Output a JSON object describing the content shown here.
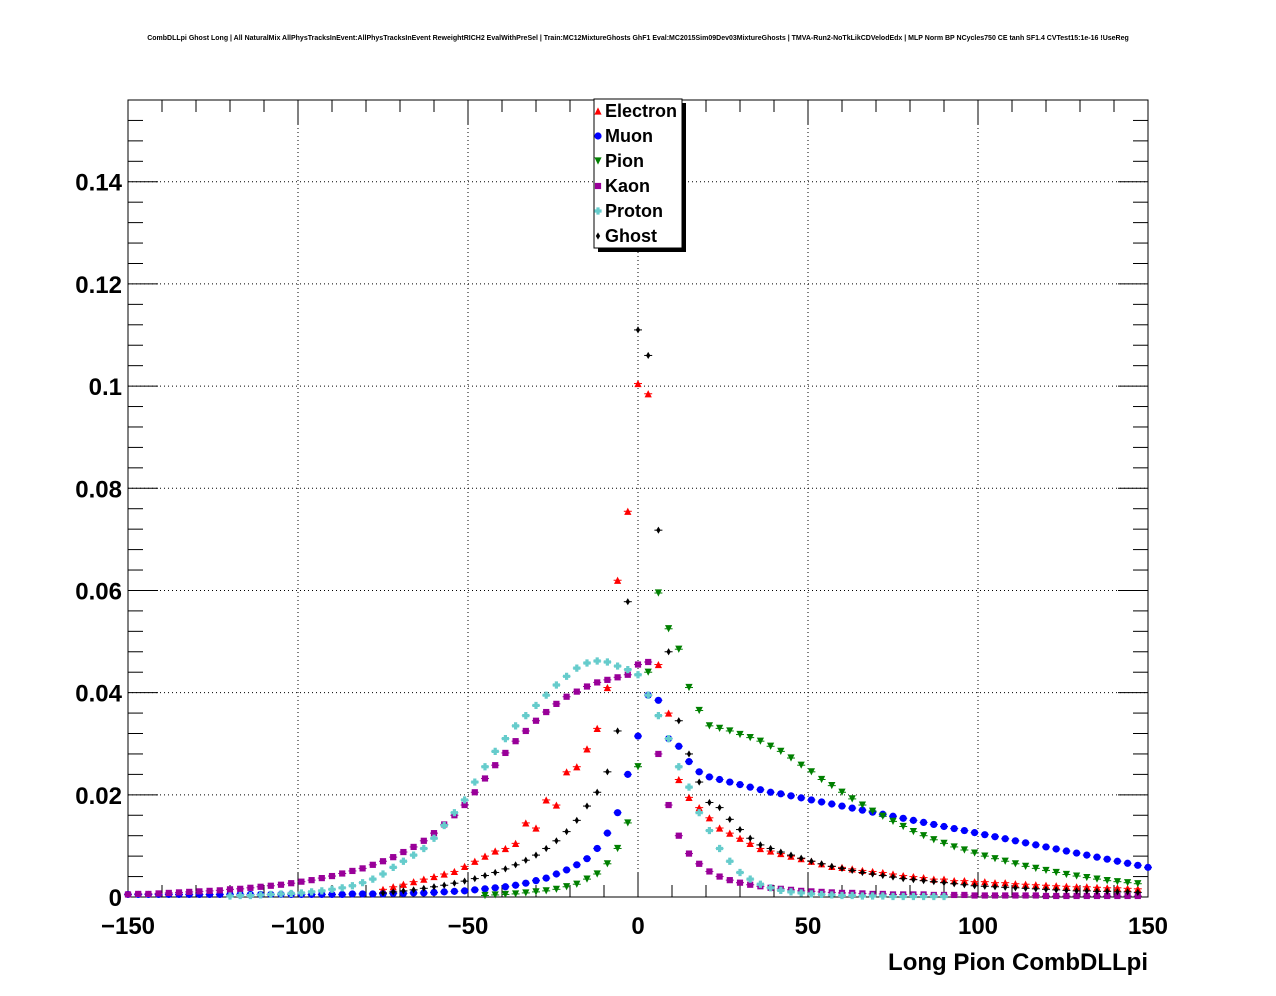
{
  "title": "CombDLLpi Ghost Long | All NaturalMix AllPhysTracksInEvent:AllPhysTracksInEvent ReweightRICH2 EvalWithPreSel | Train:MC12MixtureGhosts GhF1 Eval:MC2015Sim09Dev03MixtureGhosts | TMVA-Run2-NoTkLikCDVelodEdx | MLP Norm BP NCycles750 CE tanh SF1.4 CVTest15:1e-16 !UseReg",
  "chart_data": {
    "type": "scatter",
    "xlabel": "Long Pion CombDLLpi",
    "ylabel": "",
    "xlim": [
      -150,
      150
    ],
    "ylim": [
      0,
      0.156
    ],
    "xticks": [
      -150,
      -100,
      -50,
      0,
      50,
      100,
      150
    ],
    "xtick_labels": [
      "−150",
      "−100",
      "−50",
      "0",
      "50",
      "100",
      "150"
    ],
    "yticks": [
      0,
      0.02,
      0.04,
      0.06,
      0.08,
      0.1,
      0.12,
      0.14
    ],
    "ytick_labels": [
      "0",
      "0.02",
      "0.04",
      "0.06",
      "0.08",
      "0.1",
      "0.12",
      "0.14"
    ],
    "grid": true,
    "legend_position": "top-center",
    "series": [
      {
        "name": "Electron",
        "color": "#ff0000",
        "marker": "triangle-up",
        "x": [
          -75,
          -72,
          -69,
          -66,
          -63,
          -60,
          -57,
          -54,
          -51,
          -48,
          -45,
          -42,
          -39,
          -36,
          -33,
          -30,
          -27,
          -24,
          -21,
          -18,
          -15,
          -12,
          -9,
          -6,
          -3,
          0,
          3,
          6,
          9,
          12,
          15,
          18,
          21,
          24,
          27,
          30,
          33,
          36,
          39,
          42,
          45,
          48,
          51,
          54,
          57,
          60,
          63,
          66,
          69,
          72,
          75,
          78,
          81,
          84,
          87,
          90,
          93,
          96,
          99,
          102,
          105,
          108,
          111,
          114,
          117,
          120,
          123,
          126,
          129,
          132,
          135,
          138,
          141,
          144,
          147
        ],
        "y": [
          0.0015,
          0.002,
          0.0025,
          0.003,
          0.0035,
          0.004,
          0.0045,
          0.005,
          0.006,
          0.007,
          0.008,
          0.009,
          0.0095,
          0.0105,
          0.0145,
          0.0135,
          0.019,
          0.018,
          0.0245,
          0.0255,
          0.029,
          0.033,
          0.041,
          0.062,
          0.0755,
          0.1005,
          0.0985,
          0.0455,
          0.036,
          0.023,
          0.0195,
          0.0175,
          0.0155,
          0.0135,
          0.0125,
          0.0115,
          0.0105,
          0.0095,
          0.009,
          0.0085,
          0.008,
          0.0075,
          0.007,
          0.0065,
          0.006,
          0.0058,
          0.0055,
          0.0052,
          0.005,
          0.0048,
          0.0045,
          0.0042,
          0.004,
          0.0038,
          0.0035,
          0.0035,
          0.0032,
          0.0032,
          0.003,
          0.003,
          0.0028,
          0.0028,
          0.0026,
          0.0025,
          0.0024,
          0.0023,
          0.0022,
          0.0021,
          0.002,
          0.002,
          0.0019,
          0.0018,
          0.0018,
          0.0017,
          0.0016
        ]
      },
      {
        "name": "Muon",
        "color": "#0000ff",
        "marker": "circle",
        "x": [
          -150,
          -147,
          -144,
          -141,
          -138,
          -135,
          -132,
          -129,
          -126,
          -123,
          -120,
          -117,
          -114,
          -111,
          -108,
          -105,
          -102,
          -99,
          -96,
          -93,
          -90,
          -87,
          -84,
          -81,
          -78,
          -75,
          -72,
          -69,
          -66,
          -63,
          -60,
          -57,
          -54,
          -51,
          -48,
          -45,
          -42,
          -39,
          -36,
          -33,
          -30,
          -27,
          -24,
          -21,
          -18,
          -15,
          -12,
          -9,
          -6,
          -3,
          0,
          3,
          6,
          9,
          12,
          15,
          18,
          21,
          24,
          27,
          30,
          33,
          36,
          39,
          42,
          45,
          48,
          51,
          54,
          57,
          60,
          63,
          66,
          69,
          72,
          75,
          78,
          81,
          84,
          87,
          90,
          93,
          96,
          99,
          102,
          105,
          108,
          111,
          114,
          117,
          120,
          123,
          126,
          129,
          132,
          135,
          138,
          141,
          144,
          147,
          150
        ],
        "y": [
          0.0005,
          0.0005,
          0.0005,
          0.0005,
          0.0005,
          0.0005,
          0.0005,
          0.0005,
          0.0005,
          0.0005,
          0.0005,
          0.0005,
          0.0005,
          0.0005,
          0.0005,
          0.0005,
          0.0005,
          0.0005,
          0.0005,
          0.0005,
          0.0005,
          0.0005,
          0.0006,
          0.0006,
          0.0006,
          0.0006,
          0.0007,
          0.0007,
          0.0008,
          0.0008,
          0.0009,
          0.001,
          0.0011,
          0.0012,
          0.0014,
          0.0016,
          0.0018,
          0.002,
          0.0023,
          0.0027,
          0.0032,
          0.0037,
          0.0045,
          0.0053,
          0.0063,
          0.0075,
          0.0095,
          0.0125,
          0.0165,
          0.024,
          0.0315,
          0.0395,
          0.0385,
          0.031,
          0.0295,
          0.0265,
          0.0245,
          0.0235,
          0.023,
          0.0225,
          0.022,
          0.0215,
          0.021,
          0.0205,
          0.0202,
          0.0198,
          0.0194,
          0.019,
          0.0186,
          0.0182,
          0.0178,
          0.0174,
          0.017,
          0.0166,
          0.0162,
          0.0158,
          0.0154,
          0.015,
          0.0146,
          0.0142,
          0.0138,
          0.0134,
          0.013,
          0.0126,
          0.0122,
          0.0118,
          0.0114,
          0.011,
          0.0106,
          0.0102,
          0.0098,
          0.0094,
          0.009,
          0.0086,
          0.0082,
          0.0078,
          0.0074,
          0.007,
          0.0066,
          0.0062,
          0.0058
        ]
      },
      {
        "name": "Pion",
        "color": "#008000",
        "marker": "triangle-down",
        "x": [
          -45,
          -42,
          -39,
          -36,
          -33,
          -30,
          -27,
          -24,
          -21,
          -18,
          -15,
          -12,
          -9,
          -6,
          -3,
          0,
          3,
          6,
          9,
          12,
          15,
          18,
          21,
          24,
          27,
          30,
          33,
          36,
          39,
          42,
          45,
          48,
          51,
          54,
          57,
          60,
          63,
          66,
          69,
          72,
          75,
          78,
          81,
          84,
          87,
          90,
          93,
          96,
          99,
          102,
          105,
          108,
          111,
          114,
          117,
          120,
          123,
          126,
          129,
          132,
          135,
          138,
          141,
          144,
          147
        ],
        "y": [
          0.0003,
          0.0004,
          0.0005,
          0.0006,
          0.0008,
          0.001,
          0.0012,
          0.0015,
          0.002,
          0.0025,
          0.0035,
          0.0045,
          0.0065,
          0.0095,
          0.0145,
          0.0255,
          0.044,
          0.0595,
          0.0525,
          0.0485,
          0.041,
          0.0365,
          0.0335,
          0.033,
          0.0325,
          0.0318,
          0.0312,
          0.0305,
          0.0295,
          0.0285,
          0.0272,
          0.0258,
          0.0245,
          0.023,
          0.0218,
          0.0205,
          0.0192,
          0.018,
          0.0168,
          0.0158,
          0.0148,
          0.0138,
          0.0128,
          0.012,
          0.0112,
          0.0105,
          0.0098,
          0.0092,
          0.0086,
          0.008,
          0.0075,
          0.007,
          0.0065,
          0.006,
          0.0056,
          0.0052,
          0.0048,
          0.0044,
          0.0041,
          0.0038,
          0.0035,
          0.0032,
          0.003,
          0.0028,
          0.0026
        ]
      },
      {
        "name": "Kaon",
        "color": "#990099",
        "marker": "square",
        "x": [
          -150,
          -147,
          -144,
          -141,
          -138,
          -135,
          -132,
          -129,
          -126,
          -123,
          -120,
          -117,
          -114,
          -111,
          -108,
          -105,
          -102,
          -99,
          -96,
          -93,
          -90,
          -87,
          -84,
          -81,
          -78,
          -75,
          -72,
          -69,
          -66,
          -63,
          -60,
          -57,
          -54,
          -51,
          -48,
          -45,
          -42,
          -39,
          -36,
          -33,
          -30,
          -27,
          -24,
          -21,
          -18,
          -15,
          -12,
          -9,
          -6,
          -3,
          0,
          3,
          6,
          9,
          12,
          15,
          18,
          21,
          24,
          27,
          30,
          33,
          36,
          39,
          42,
          45,
          48,
          51,
          54,
          57,
          60,
          63,
          66,
          69,
          72,
          75,
          78,
          81,
          84,
          87,
          90,
          93,
          96,
          99,
          102,
          105,
          108,
          111,
          114,
          117,
          120,
          123,
          126,
          129,
          132,
          135,
          138,
          141,
          144,
          147
        ],
        "y": [
          0.0005,
          0.0006,
          0.0006,
          0.0007,
          0.0008,
          0.0009,
          0.001,
          0.0011,
          0.0012,
          0.0013,
          0.0015,
          0.0016,
          0.0018,
          0.002,
          0.0022,
          0.0024,
          0.0027,
          0.003,
          0.0033,
          0.0037,
          0.0041,
          0.0046,
          0.0051,
          0.0056,
          0.0063,
          0.007,
          0.0078,
          0.0088,
          0.0098,
          0.011,
          0.0125,
          0.0142,
          0.016,
          0.018,
          0.0205,
          0.0232,
          0.0258,
          0.0282,
          0.0305,
          0.0325,
          0.0345,
          0.0362,
          0.0378,
          0.0392,
          0.0402,
          0.0412,
          0.042,
          0.0425,
          0.043,
          0.0435,
          0.0455,
          0.046,
          0.028,
          0.018,
          0.012,
          0.0085,
          0.0065,
          0.005,
          0.004,
          0.0033,
          0.0028,
          0.0024,
          0.0021,
          0.0018,
          0.0016,
          0.0014,
          0.0012,
          0.0011,
          0.001,
          0.0009,
          0.0008,
          0.0008,
          0.0007,
          0.0006,
          0.0006,
          0.0005,
          0.0005,
          0.0005,
          0.0005,
          0.0004,
          0.0004,
          0.0004,
          0.0004,
          0.0003,
          0.0003,
          0.0003,
          0.0003,
          0.0003,
          0.0003,
          0.0003,
          0.0002,
          0.0002,
          0.0002,
          0.0002,
          0.0002,
          0.0002,
          0.0002,
          0.0002,
          0.0002,
          0.0002
        ]
      },
      {
        "name": "Proton",
        "color": "#66cccc",
        "marker": "cross",
        "x": [
          -120,
          -117,
          -114,
          -111,
          -108,
          -105,
          -102,
          -99,
          -96,
          -93,
          -90,
          -87,
          -84,
          -81,
          -78,
          -75,
          -72,
          -69,
          -66,
          -63,
          -60,
          -57,
          -54,
          -51,
          -48,
          -45,
          -42,
          -39,
          -36,
          -33,
          -30,
          -27,
          -24,
          -21,
          -18,
          -15,
          -12,
          -9,
          -6,
          -3,
          0,
          3,
          6,
          9,
          12,
          15,
          18,
          21,
          24,
          27,
          30,
          33,
          36,
          39,
          42,
          45,
          48,
          51,
          54,
          57,
          60,
          63,
          66,
          69,
          72,
          75,
          78,
          81,
          84,
          87,
          90
        ],
        "y": [
          0.0002,
          0.0003,
          0.0003,
          0.0004,
          0.0005,
          0.0006,
          0.0007,
          0.0008,
          0.001,
          0.0012,
          0.0015,
          0.0018,
          0.0022,
          0.0028,
          0.0035,
          0.0045,
          0.0058,
          0.007,
          0.0082,
          0.0095,
          0.0115,
          0.014,
          0.0165,
          0.019,
          0.0225,
          0.0255,
          0.0285,
          0.031,
          0.0335,
          0.0355,
          0.0375,
          0.0395,
          0.0415,
          0.0432,
          0.0448,
          0.0458,
          0.0462,
          0.046,
          0.0452,
          0.0445,
          0.0435,
          0.0395,
          0.0355,
          0.031,
          0.0255,
          0.0215,
          0.0165,
          0.013,
          0.0095,
          0.007,
          0.0048,
          0.0035,
          0.0025,
          0.0018,
          0.0013,
          0.001,
          0.0008,
          0.0006,
          0.0005,
          0.0004,
          0.0003,
          0.0003,
          0.0002,
          0.0002,
          0.0002,
          0.0001,
          0.0001,
          0.0001,
          0.0001,
          0.0001,
          0.0001
        ]
      },
      {
        "name": "Ghost",
        "color": "#000000",
        "marker": "diamond",
        "x": [
          -75,
          -72,
          -69,
          -66,
          -63,
          -60,
          -57,
          -54,
          -51,
          -48,
          -45,
          -42,
          -39,
          -36,
          -33,
          -30,
          -27,
          -24,
          -21,
          -18,
          -15,
          -12,
          -9,
          -6,
          -3,
          0,
          3,
          6,
          9,
          12,
          15,
          18,
          21,
          24,
          27,
          30,
          33,
          36,
          39,
          42,
          45,
          48,
          51,
          54,
          57,
          60,
          63,
          66,
          69,
          72,
          75,
          78,
          81,
          84,
          87,
          90,
          93,
          96,
          99,
          102,
          105,
          108,
          111,
          114,
          117,
          120,
          123,
          126,
          129,
          132,
          135,
          138,
          141,
          144,
          147
        ],
        "y": [
          0.0008,
          0.001,
          0.0012,
          0.0014,
          0.0017,
          0.002,
          0.0023,
          0.0027,
          0.0031,
          0.0036,
          0.0042,
          0.0048,
          0.0055,
          0.0063,
          0.0072,
          0.0082,
          0.0095,
          0.011,
          0.0128,
          0.015,
          0.0178,
          0.0205,
          0.0245,
          0.0325,
          0.0578,
          0.111,
          0.106,
          0.0718,
          0.048,
          0.0345,
          0.028,
          0.0225,
          0.0185,
          0.0175,
          0.0152,
          0.0132,
          0.0115,
          0.0102,
          0.0095,
          0.0088,
          0.0082,
          0.0076,
          0.007,
          0.0065,
          0.006,
          0.0056,
          0.0052,
          0.0048,
          0.0045,
          0.0042,
          0.0039,
          0.0036,
          0.0034,
          0.0032,
          0.003,
          0.0028,
          0.0026,
          0.0024,
          0.0022,
          0.0021,
          0.002,
          0.0019,
          0.0018,
          0.0017,
          0.0016,
          0.0015,
          0.0014,
          0.0013,
          0.0012,
          0.0012,
          0.0011,
          0.0011,
          0.001,
          0.001,
          0.0009
        ]
      }
    ]
  }
}
